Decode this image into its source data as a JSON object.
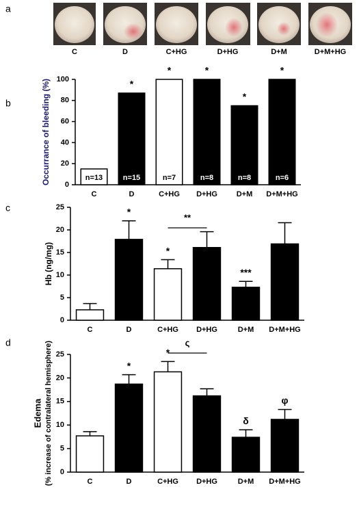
{
  "photo_panel": {
    "panel": "a",
    "labels": [
      "C",
      "D",
      "C+HG",
      "D+HG",
      "D+M",
      "D+M+HG"
    ]
  },
  "chart_data": [
    {
      "type": "bar",
      "panel": "b",
      "y_label": "Occurrance of bleeding (%)",
      "y_label_color": "#1a1a6e",
      "categories": [
        "C",
        "D",
        "C+HG",
        "D+HG",
        "D+M",
        "D+M+HG"
      ],
      "values": [
        15,
        87,
        100,
        100,
        75,
        100
      ],
      "colors": [
        "#ffffff",
        "#000000",
        "#ffffff",
        "#000000",
        "#000000",
        "#000000"
      ],
      "bar_labels": [
        "n=13",
        "n=15",
        "n=7",
        "n=8",
        "n=8",
        "n=6"
      ],
      "significance": [
        null,
        "*",
        "*",
        "*",
        "*",
        "*"
      ],
      "ylim": [
        0,
        100
      ],
      "yticks": [
        0,
        20,
        40,
        60,
        80,
        100
      ]
    },
    {
      "type": "bar",
      "panel": "c",
      "y_label": "Hb (ng/mg)",
      "y_label_color": "#000000",
      "categories": [
        "C",
        "D",
        "C+HG",
        "D+HG",
        "D+M",
        "D+M+HG"
      ],
      "values": [
        2.3,
        17.9,
        11.4,
        16.1,
        7.3,
        16.9
      ],
      "errors": [
        1.4,
        4.1,
        2.0,
        3.5,
        1.3,
        4.7
      ],
      "colors": [
        "#ffffff",
        "#000000",
        "#ffffff",
        "#000000",
        "#000000",
        "#000000"
      ],
      "significance": [
        null,
        "*",
        "*",
        null,
        "***",
        null
      ],
      "bracket_label": "**",
      "ylim": [
        0,
        25
      ],
      "yticks": [
        0,
        5,
        10,
        15,
        20,
        25
      ]
    },
    {
      "type": "bar",
      "panel": "d",
      "y_label": "Edema",
      "y_label_note": "(% increase of contralateral hemisphere)",
      "y_label_color": "#000000",
      "categories": [
        "C",
        "D",
        "C+HG",
        "D+HG",
        "D+M",
        "D+M+HG"
      ],
      "values": [
        7.7,
        18.7,
        21.3,
        16.2,
        7.4,
        11.2
      ],
      "errors": [
        0.9,
        2.0,
        2.2,
        1.5,
        1.6,
        2.1
      ],
      "colors": [
        "#ffffff",
        "#000000",
        "#ffffff",
        "#000000",
        "#000000",
        "#000000"
      ],
      "significance": [
        null,
        "*",
        "*",
        null,
        "δ",
        "φ"
      ],
      "bracket_label": "ς",
      "ylim": [
        0,
        25
      ],
      "yticks": [
        0,
        5,
        10,
        15,
        20,
        25
      ]
    }
  ]
}
